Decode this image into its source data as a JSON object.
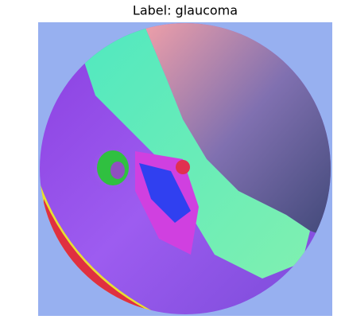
{
  "title": "Label: glaucoma"
}
